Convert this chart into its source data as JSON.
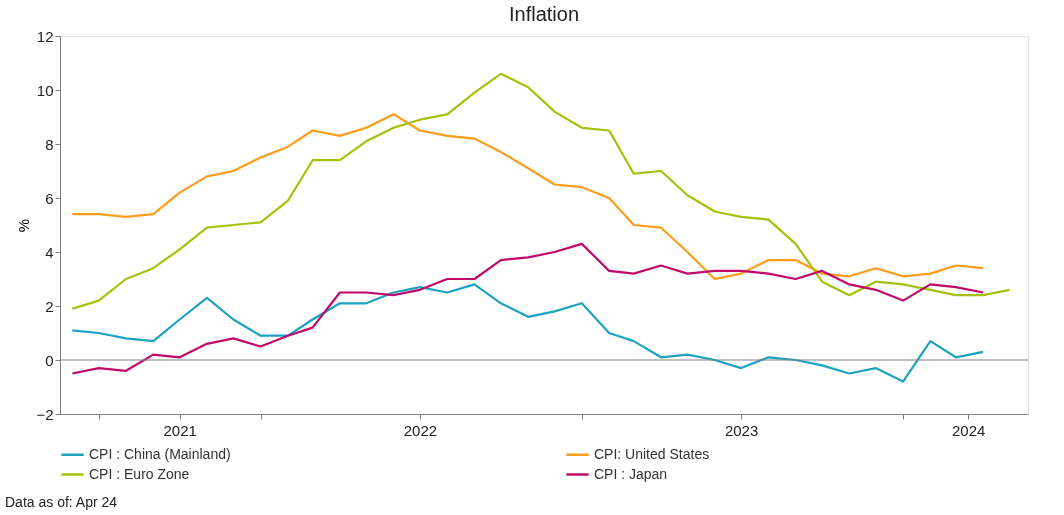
{
  "chart_data": {
    "type": "line",
    "title": "Inflation",
    "ylabel": "%",
    "series": [
      {
        "name": "CPI : China (Mainland)",
        "color": "#1ba3bf",
        "x": [
          "2021-06",
          "2021-07",
          "2021-08",
          "2021-09",
          "2021-10",
          "2021-11",
          "2021-12",
          "2022-01",
          "2022-02",
          "2022-03",
          "2022-04",
          "2022-05",
          "2022-06",
          "2022-07",
          "2022-08",
          "2022-09",
          "2022-10",
          "2022-11",
          "2022-12",
          "2023-01",
          "2023-02",
          "2023-03",
          "2023-04",
          "2023-05",
          "2023-06",
          "2023-07",
          "2023-08",
          "2023-09",
          "2023-10",
          "2023-11",
          "2023-12",
          "2024-01",
          "2024-02",
          "2024-03",
          "2024-04"
        ],
        "values": [
          1.1,
          1.0,
          0.8,
          0.7,
          1.5,
          2.3,
          1.5,
          0.9,
          0.9,
          1.5,
          2.1,
          2.1,
          2.5,
          2.7,
          2.5,
          2.8,
          2.1,
          1.6,
          1.8,
          2.1,
          1.0,
          0.7,
          0.1,
          0.2,
          0.0,
          -0.3,
          0.1,
          0.0,
          -0.2,
          -0.5,
          -0.3,
          -0.8,
          0.7,
          0.1,
          0.3
        ]
      },
      {
        "name": "CPI: United States",
        "color": "#ff9c1a",
        "x": [
          "2021-06",
          "2021-07",
          "2021-08",
          "2021-09",
          "2021-10",
          "2021-11",
          "2021-12",
          "2022-01",
          "2022-02",
          "2022-03",
          "2022-04",
          "2022-05",
          "2022-06",
          "2022-07",
          "2022-08",
          "2022-09",
          "2022-10",
          "2022-11",
          "2022-12",
          "2023-01",
          "2023-02",
          "2023-03",
          "2023-04",
          "2023-05",
          "2023-06",
          "2023-07",
          "2023-08",
          "2023-09",
          "2023-10",
          "2023-11",
          "2023-12",
          "2024-01",
          "2024-02",
          "2024-03",
          "2024-04"
        ],
        "values": [
          5.4,
          5.4,
          5.3,
          5.4,
          6.2,
          6.8,
          7.0,
          7.5,
          7.9,
          8.5,
          8.3,
          8.6,
          9.1,
          8.5,
          8.3,
          8.2,
          7.7,
          7.1,
          6.5,
          6.4,
          6.0,
          5.0,
          4.9,
          4.0,
          3.0,
          3.2,
          3.7,
          3.7,
          3.2,
          3.1,
          3.4,
          3.1,
          3.2,
          3.5,
          3.4
        ]
      },
      {
        "name": "CPI : Euro Zone",
        "color": "#a5c10a",
        "x": [
          "2021-06",
          "2021-07",
          "2021-08",
          "2021-09",
          "2021-10",
          "2021-11",
          "2021-12",
          "2022-01",
          "2022-02",
          "2022-03",
          "2022-04",
          "2022-05",
          "2022-06",
          "2022-07",
          "2022-08",
          "2022-09",
          "2022-10",
          "2022-11",
          "2022-12",
          "2023-01",
          "2023-02",
          "2023-03",
          "2023-04",
          "2023-05",
          "2023-06",
          "2023-07",
          "2023-08",
          "2023-09",
          "2023-10",
          "2023-11",
          "2023-12",
          "2024-01",
          "2024-02",
          "2024-03",
          "2024-04",
          "2024-05"
        ],
        "values": [
          1.9,
          2.2,
          3.0,
          3.4,
          4.1,
          4.9,
          5.0,
          5.1,
          5.9,
          7.4,
          7.4,
          8.1,
          8.6,
          8.9,
          9.1,
          9.9,
          10.6,
          10.1,
          9.2,
          8.6,
          8.5,
          6.9,
          7.0,
          6.1,
          5.5,
          5.3,
          5.2,
          4.3,
          2.9,
          2.4,
          2.9,
          2.8,
          2.6,
          2.4,
          2.4,
          2.6
        ]
      },
      {
        "name": "CPI : Japan",
        "color": "#c0096b",
        "x": [
          "2021-06",
          "2021-07",
          "2021-08",
          "2021-09",
          "2021-10",
          "2021-11",
          "2021-12",
          "2022-01",
          "2022-02",
          "2022-03",
          "2022-04",
          "2022-05",
          "2022-06",
          "2022-07",
          "2022-08",
          "2022-09",
          "2022-10",
          "2022-11",
          "2022-12",
          "2023-01",
          "2023-02",
          "2023-03",
          "2023-04",
          "2023-05",
          "2023-06",
          "2023-07",
          "2023-08",
          "2023-09",
          "2023-10",
          "2023-11",
          "2023-12",
          "2024-01",
          "2024-02",
          "2024-03",
          "2024-04"
        ],
        "values": [
          -0.5,
          -0.3,
          -0.4,
          0.2,
          0.1,
          0.6,
          0.8,
          0.5,
          0.9,
          1.2,
          2.5,
          2.5,
          2.4,
          2.6,
          3.0,
          3.0,
          3.7,
          3.8,
          4.0,
          4.3,
          3.3,
          3.2,
          3.5,
          3.2,
          3.3,
          3.3,
          3.2,
          3.0,
          3.3,
          2.8,
          2.6,
          2.2,
          2.8,
          2.7,
          2.5
        ]
      }
    ],
    "xlim": [
      "2021-05-18",
      "2024-05-22"
    ],
    "xticks": [
      {
        "value": "2021-07-01",
        "label": null
      },
      {
        "value": "2021-10-01",
        "label": "2021"
      },
      {
        "value": "2022-01-01",
        "label": null
      },
      {
        "value": "2022-07-01",
        "label": "2022"
      },
      {
        "value": "2023-01-01",
        "label": null
      },
      {
        "value": "2023-07-01",
        "label": "2023"
      },
      {
        "value": "2024-01-01",
        "label": null
      },
      {
        "value": "2024-03-15",
        "label": "2024"
      }
    ],
    "ylim": [
      -2,
      12
    ],
    "yticks": [
      -2,
      0,
      2,
      4,
      6,
      8,
      10,
      12
    ],
    "ref_lines": [
      {
        "axis": "y",
        "value": 0,
        "color": "#808080"
      }
    ],
    "grid": false,
    "legend": "bottom",
    "marker": "none",
    "line_style": "solid",
    "annotations": [
      "Data as of: Apr 24"
    ]
  }
}
